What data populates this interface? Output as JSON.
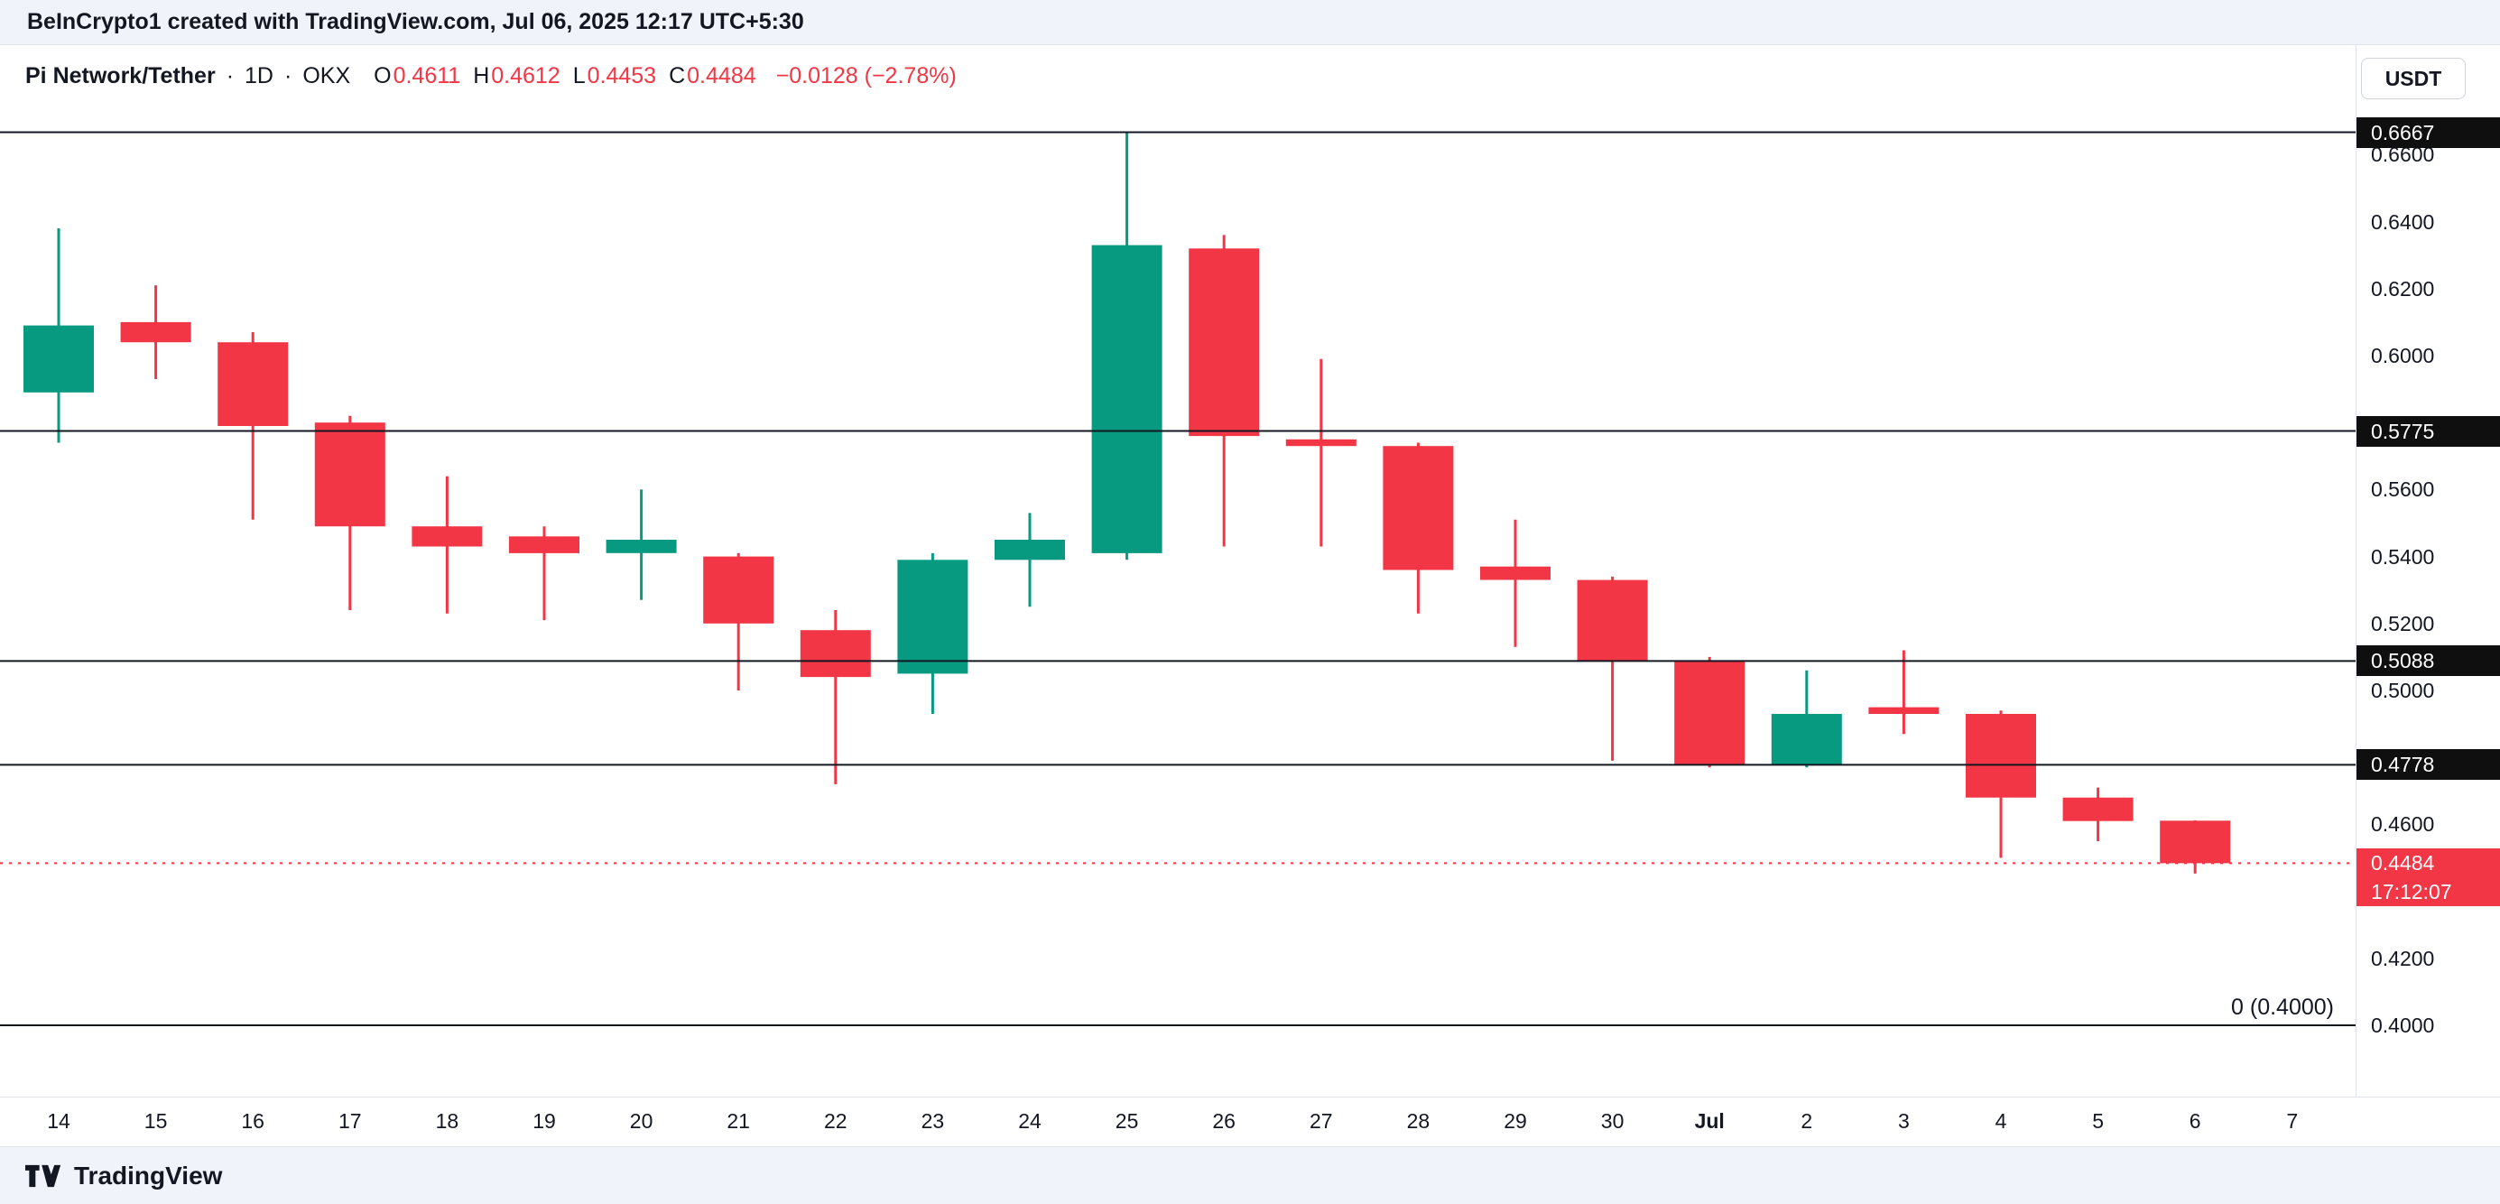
{
  "attribution_bar": {
    "text": "BeInCrypto1 created with TradingView.com, Jul 06, 2025 12:17 UTC+5:30"
  },
  "legend": {
    "symbol": "Pi Network/Tether",
    "separator": "·",
    "interval": "1D",
    "exchange": "OKX",
    "ohlc": {
      "o": {
        "k": "O",
        "v": "0.4611"
      },
      "h": {
        "k": "H",
        "v": "0.4612"
      },
      "l": {
        "k": "L",
        "v": "0.4453"
      },
      "c": {
        "k": "C",
        "v": "0.4484"
      }
    },
    "change": "−0.0128 (−2.78%)"
  },
  "toolbar": {
    "currency_button": "USDT"
  },
  "footer": {
    "brand": "TradingView"
  },
  "chart_data": {
    "type": "candlestick",
    "title": "Pi Network/Tether · 1D · OKX",
    "symbol": "PI/USDT",
    "interval": "1D",
    "exchange": "OKX",
    "ylim": [
      0.379,
      0.693
    ],
    "grid": false,
    "month_label": "Jul",
    "x_labels": [
      "14",
      "15",
      "16",
      "17",
      "18",
      "19",
      "20",
      "21",
      "22",
      "23",
      "24",
      "25",
      "26",
      "27",
      "28",
      "29",
      "30",
      "Jul",
      "2",
      "3",
      "4",
      "5",
      "6",
      "7"
    ],
    "candles": [
      {
        "t": "14",
        "o": 0.589,
        "h": 0.638,
        "l": 0.574,
        "c": 0.609
      },
      {
        "t": "15",
        "o": 0.61,
        "h": 0.621,
        "l": 0.593,
        "c": 0.604
      },
      {
        "t": "16",
        "o": 0.604,
        "h": 0.607,
        "l": 0.551,
        "c": 0.579
      },
      {
        "t": "17",
        "o": 0.58,
        "h": 0.582,
        "l": 0.524,
        "c": 0.549
      },
      {
        "t": "18",
        "o": 0.549,
        "h": 0.564,
        "l": 0.523,
        "c": 0.543
      },
      {
        "t": "19",
        "o": 0.546,
        "h": 0.549,
        "l": 0.521,
        "c": 0.541
      },
      {
        "t": "20",
        "o": 0.541,
        "h": 0.56,
        "l": 0.527,
        "c": 0.545
      },
      {
        "t": "21",
        "o": 0.54,
        "h": 0.541,
        "l": 0.5,
        "c": 0.52
      },
      {
        "t": "22",
        "o": 0.518,
        "h": 0.524,
        "l": 0.472,
        "c": 0.504
      },
      {
        "t": "23",
        "o": 0.505,
        "h": 0.541,
        "l": 0.493,
        "c": 0.539
      },
      {
        "t": "24",
        "o": 0.539,
        "h": 0.553,
        "l": 0.525,
        "c": 0.545
      },
      {
        "t": "25",
        "o": 0.541,
        "h": 0.6667,
        "l": 0.539,
        "c": 0.633
      },
      {
        "t": "26",
        "o": 0.632,
        "h": 0.636,
        "l": 0.543,
        "c": 0.576
      },
      {
        "t": "27",
        "o": 0.575,
        "h": 0.599,
        "l": 0.543,
        "c": 0.573
      },
      {
        "t": "28",
        "o": 0.573,
        "h": 0.574,
        "l": 0.523,
        "c": 0.536
      },
      {
        "t": "29",
        "o": 0.537,
        "h": 0.551,
        "l": 0.513,
        "c": 0.533
      },
      {
        "t": "30",
        "o": 0.533,
        "h": 0.534,
        "l": 0.479,
        "c": 0.509
      },
      {
        "t": "Jul",
        "o": 0.509,
        "h": 0.51,
        "l": 0.477,
        "c": 0.478
      },
      {
        "t": "2",
        "o": 0.478,
        "h": 0.506,
        "l": 0.477,
        "c": 0.493
      },
      {
        "t": "3",
        "o": 0.495,
        "h": 0.512,
        "l": 0.487,
        "c": 0.493
      },
      {
        "t": "4",
        "o": 0.493,
        "h": 0.494,
        "l": 0.45,
        "c": 0.468
      },
      {
        "t": "5",
        "o": 0.468,
        "h": 0.471,
        "l": 0.455,
        "c": 0.461
      },
      {
        "t": "6",
        "o": 0.4611,
        "h": 0.4612,
        "l": 0.4453,
        "c": 0.4484
      }
    ],
    "levels": [
      {
        "price": 0.6667,
        "label": "0.6667"
      },
      {
        "price": 0.5775,
        "label": "0.5775"
      },
      {
        "price": 0.5088,
        "label": "0.5088"
      },
      {
        "price": 0.4778,
        "label": "0.4778"
      },
      {
        "price": 0.4,
        "label": "0.4000",
        "badge": false,
        "plot_label": "0 (0.4000)"
      }
    ],
    "last_price": {
      "value": 0.4484,
      "label": "0.4484",
      "countdown": "17:12:07"
    },
    "y_ticks": [
      "0.6600",
      "0.6400",
      "0.6200",
      "0.6000",
      "0.5600",
      "0.5400",
      "0.5200",
      "0.5000",
      "0.4600",
      "0.4200",
      "0.4000"
    ],
    "legend_position": "top-left",
    "colors": {
      "up": "#089981",
      "down": "#f23645",
      "level_line": "#131722",
      "last_line": "#f23645"
    }
  }
}
